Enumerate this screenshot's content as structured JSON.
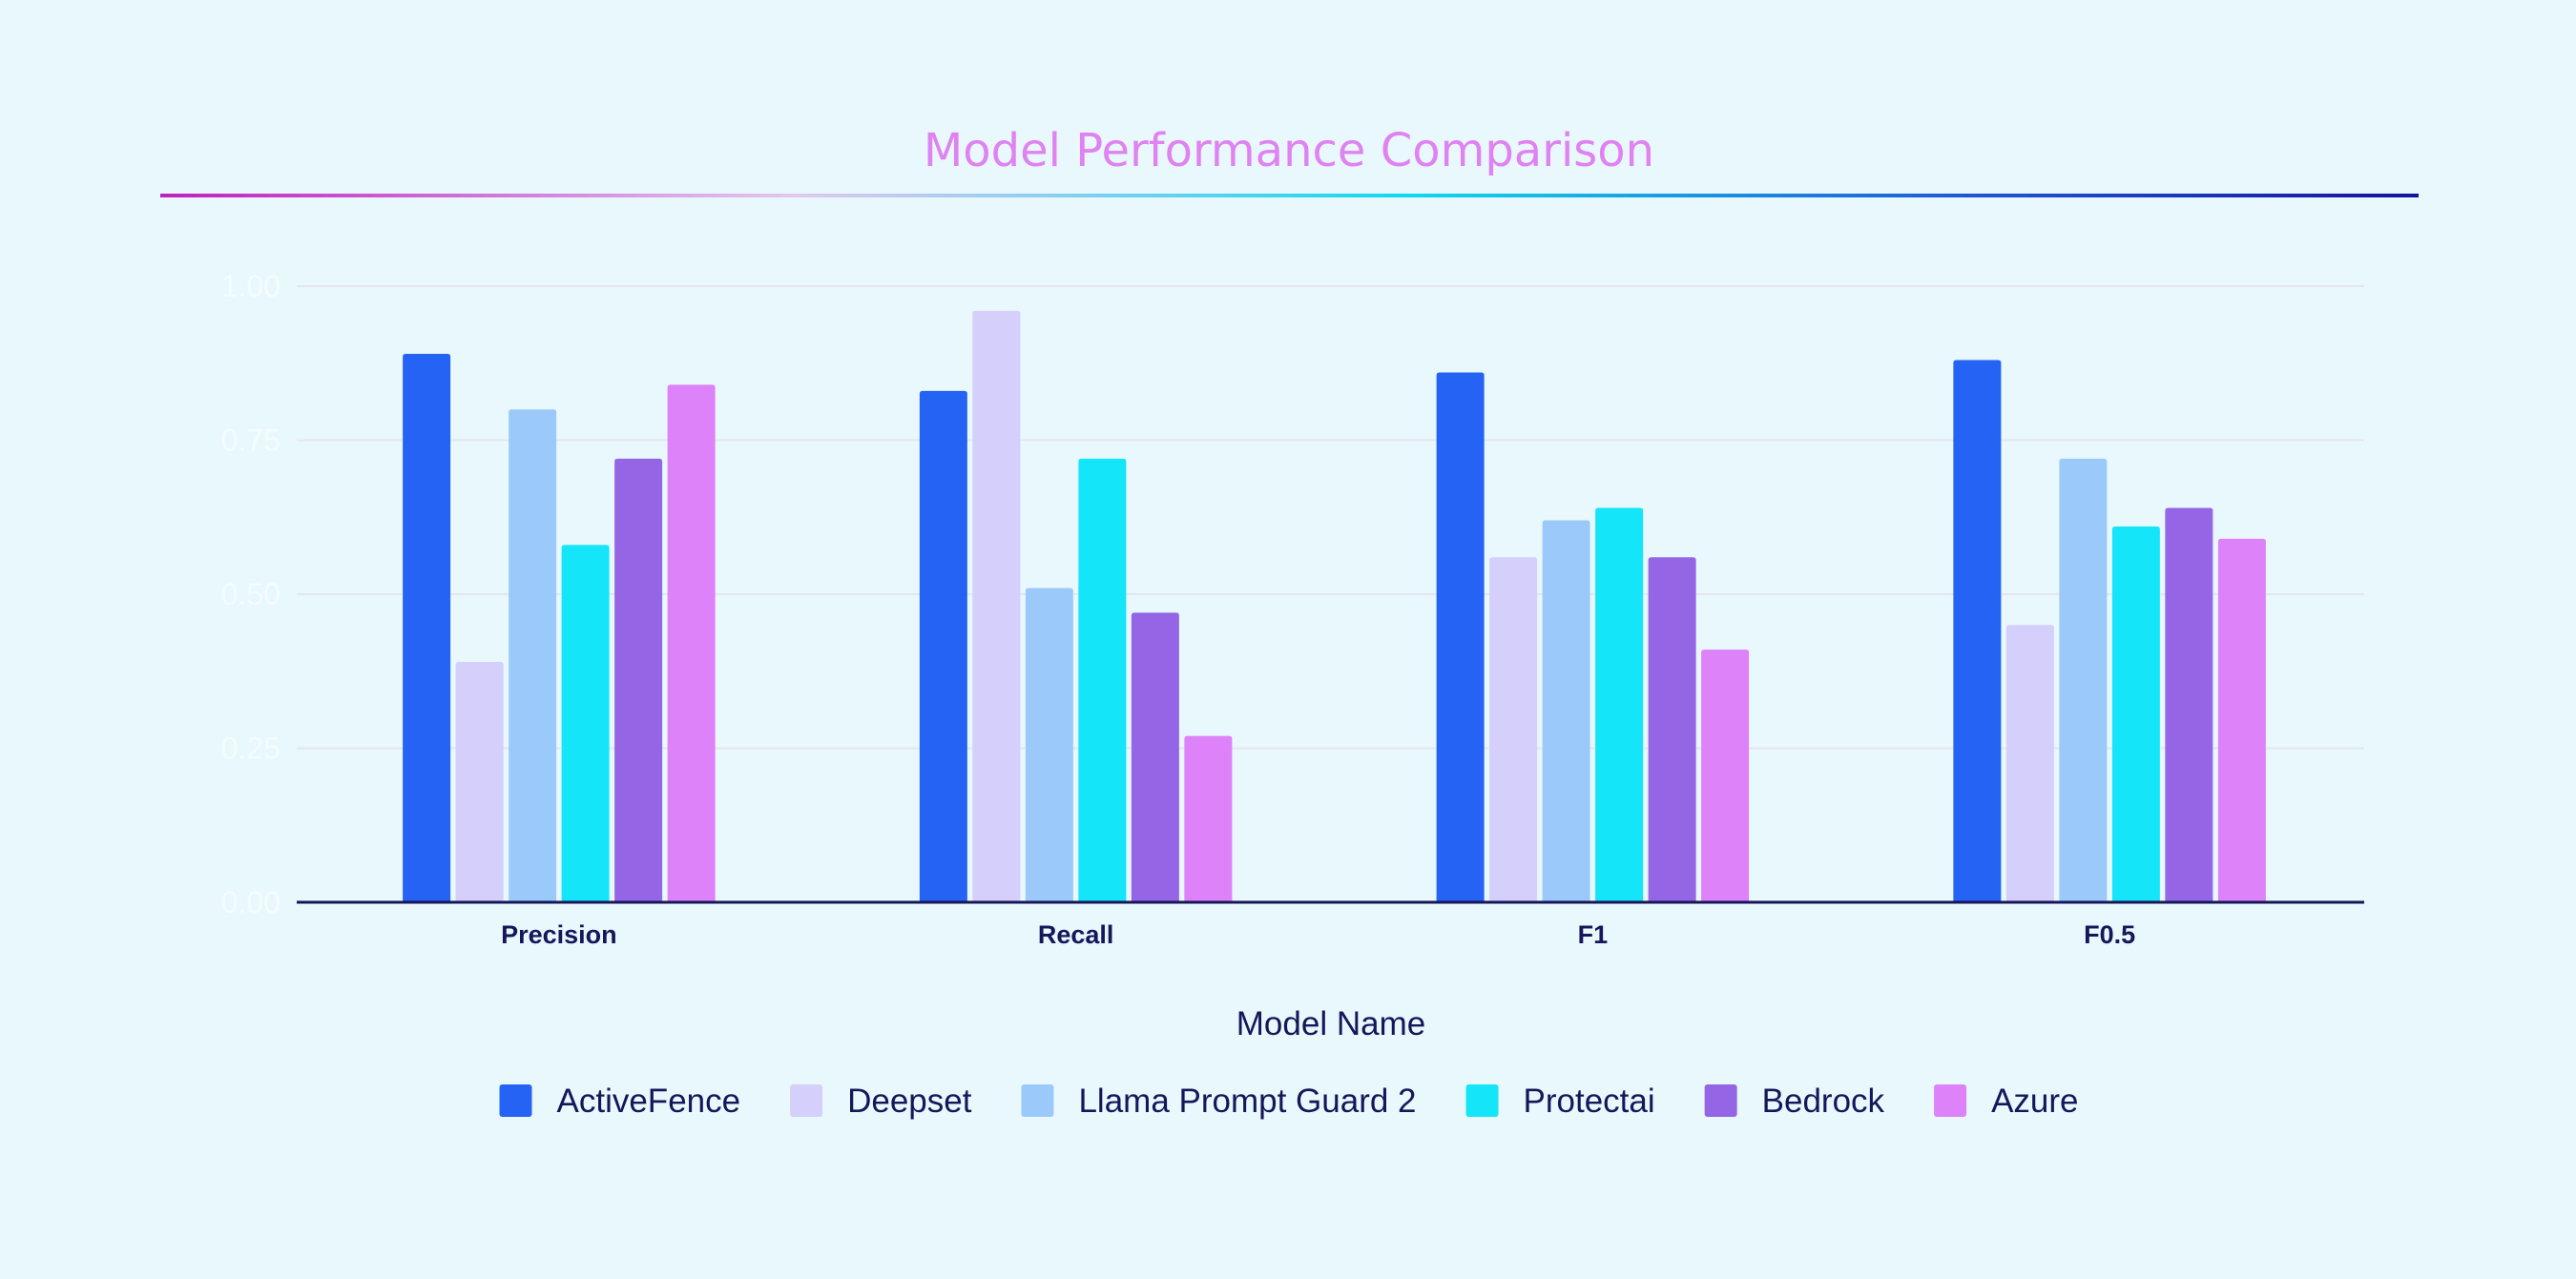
{
  "chart_data": {
    "type": "bar",
    "title": "Model Performance Comparison",
    "xlabel": "",
    "legend_title": "Model Name",
    "ylabel": "",
    "ylim": [
      0,
      1
    ],
    "yticks": [
      "0.00",
      "0.25",
      "0.50",
      "0.75",
      "1.00"
    ],
    "grid": true,
    "legend_position": "bottom",
    "categories": [
      "Precision",
      "Recall",
      "F1",
      "F0.5"
    ],
    "series": [
      {
        "name": "ActiveFence",
        "color": "#2563f5",
        "values": [
          0.89,
          0.83,
          0.86,
          0.88
        ]
      },
      {
        "name": "Deepset",
        "color": "#d4cffb",
        "values": [
          0.39,
          0.96,
          0.56,
          0.45
        ]
      },
      {
        "name": "Llama Prompt Guard 2",
        "color": "#9bcafa",
        "values": [
          0.8,
          0.51,
          0.62,
          0.72
        ]
      },
      {
        "name": "Protectai",
        "color": "#14e5f9",
        "values": [
          0.58,
          0.72,
          0.64,
          0.61
        ]
      },
      {
        "name": "Bedrock",
        "color": "#9466e6",
        "values": [
          0.72,
          0.47,
          0.56,
          0.64
        ]
      },
      {
        "name": "Azure",
        "color": "#de82f9",
        "values": [
          0.84,
          0.27,
          0.41,
          0.59
        ]
      }
    ]
  }
}
